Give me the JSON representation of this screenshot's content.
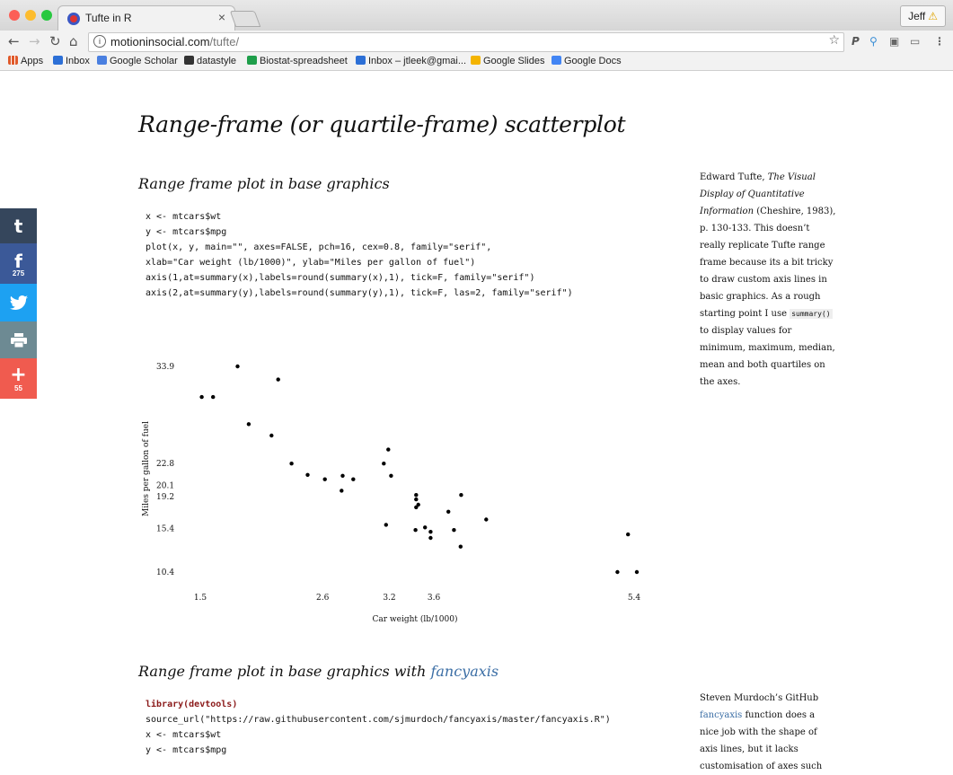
{
  "browser": {
    "tab_title": "Tufte in R",
    "tab_close": "×",
    "profile_name": "Jeff",
    "url_host": "motioninsocial.com",
    "url_path": "/tufte/",
    "bookmarks": [
      {
        "label": "Apps",
        "color": "#e05a2b"
      },
      {
        "label": "Inbox",
        "color": "#2c6fd6"
      },
      {
        "label": "Google Scholar",
        "color": "#4a7fe0"
      },
      {
        "label": "datastyle",
        "color": "#333333"
      },
      {
        "label": "Biostat-spreadsheet",
        "color": "#1e9e4a"
      },
      {
        "label": "Inbox – jtleek@gmai...",
        "color": "#2c6fd6"
      },
      {
        "label": "Google Slides",
        "color": "#f4b400"
      },
      {
        "label": "Google Docs",
        "color": "#4285f4"
      }
    ]
  },
  "share": {
    "tumblr_icon": "t",
    "facebook_icon": "f",
    "facebook_count": "275",
    "twitter_icon": "twitter-bird",
    "print_icon": "printer",
    "more_icon": "+",
    "more_count": "55",
    "colors": {
      "tumblr": "#35465c",
      "facebook": "#3b5998",
      "twitter": "#1da1f2",
      "print": "#6d8a93",
      "more": "#f05b4f"
    }
  },
  "page": {
    "title": "Range-frame (or quartile-frame) scatterplot",
    "section1": {
      "heading": "Range frame plot in base graphics",
      "code_lines": [
        "x <- mtcars$wt",
        "y <- mtcars$mpg",
        "plot(x, y, main=\"\", axes=FALSE, pch=16, cex=0.8, family=\"serif\",",
        "xlab=\"Car weight (lb/1000)\", ylab=\"Miles per gallon of fuel\")",
        "axis(1,at=summary(x),labels=round(summary(x),1), tick=F, family=\"serif\")",
        "axis(2,at=summary(y),labels=round(summary(y),1), tick=F, las=2, family=\"serif\")"
      ],
      "note": {
        "author": "Edward Tufte, ",
        "book": "The Visual Display of Quantitative Information",
        "rest1": " (Cheshire, 1983), p. 130-133. This doesn’t really replicate Tufte range frame because its a bit tricky to draw custom axis lines in basic graphics. As a rough starting point I use ",
        "code": "summary()",
        "rest2": " to display values for minimum, maximum, median, mean and both quartiles on the axes."
      }
    },
    "section2": {
      "heading_prefix": "Range frame plot in base graphics with ",
      "heading_link": "fancyaxis",
      "code_lines": [
        "library(devtools)",
        "source_url(\"https://raw.githubusercontent.com/sjmurdoch/fancyaxis/master/fancyaxis.R\")",
        "x <- mtcars$wt",
        "y <- mtcars$mpg"
      ],
      "note": {
        "prefix": "Steven Murdoch’s GitHub ",
        "link": "fancyaxis",
        "rest": " function does a nice job with the shape of axis lines, but it lacks customisation of axes such"
      }
    }
  },
  "chart_data": {
    "type": "scatter",
    "title": "",
    "xlabel": "Car weight (lb/1000)",
    "ylabel": "Miles per gallon of fuel",
    "xlim": [
      1.5,
      5.4
    ],
    "ylim": [
      10.4,
      33.9
    ],
    "x_ticks": [
      1.5,
      2.6,
      3.2,
      3.6,
      5.4
    ],
    "x_tick_labels": [
      "1.5",
      "2.6",
      "3.2",
      "3.6",
      "5.4"
    ],
    "y_ticks": [
      10.4,
      15.4,
      19.2,
      20.1,
      22.8,
      33.9
    ],
    "y_tick_labels": [
      "10.4",
      "15.4",
      "19.2",
      "20.1",
      "22.8",
      "33.9"
    ],
    "axis_lines": false,
    "grid": false,
    "points": [
      [
        2.62,
        21.0
      ],
      [
        2.875,
        21.0
      ],
      [
        2.32,
        22.8
      ],
      [
        3.215,
        21.4
      ],
      [
        3.44,
        18.7
      ],
      [
        3.46,
        18.1
      ],
      [
        3.57,
        14.3
      ],
      [
        3.19,
        24.4
      ],
      [
        3.15,
        22.8
      ],
      [
        3.44,
        19.2
      ],
      [
        3.44,
        17.8
      ],
      [
        4.07,
        16.4
      ],
      [
        3.73,
        17.3
      ],
      [
        3.78,
        15.2
      ],
      [
        5.25,
        10.4
      ],
      [
        5.424,
        10.4
      ],
      [
        5.345,
        14.7
      ],
      [
        2.2,
        32.4
      ],
      [
        1.615,
        30.4
      ],
      [
        1.835,
        33.9
      ],
      [
        2.465,
        21.5
      ],
      [
        3.52,
        15.5
      ],
      [
        3.435,
        15.2
      ],
      [
        3.84,
        13.3
      ],
      [
        3.845,
        19.2
      ],
      [
        1.935,
        27.3
      ],
      [
        2.14,
        26.0
      ],
      [
        1.513,
        30.4
      ],
      [
        3.17,
        15.8
      ],
      [
        2.77,
        19.7
      ],
      [
        3.57,
        15.0
      ],
      [
        2.78,
        21.4
      ]
    ]
  }
}
